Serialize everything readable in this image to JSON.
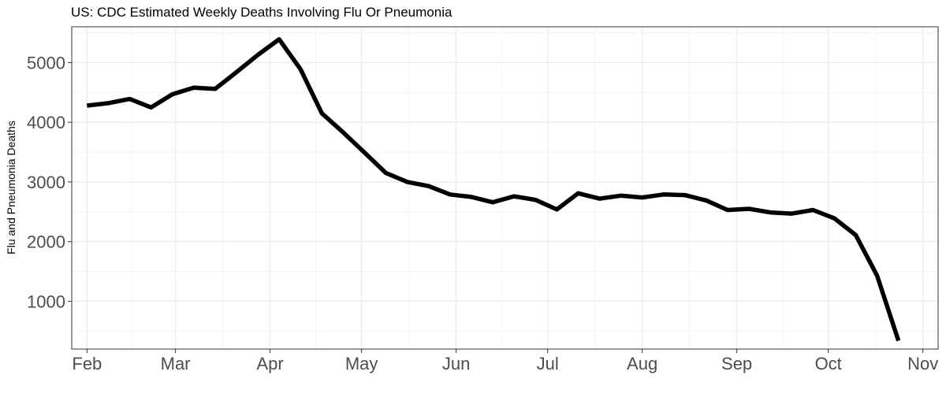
{
  "chart_data": {
    "type": "line",
    "title": "US: CDC Estimated Weekly Deaths Involving Flu Or Pneumonia",
    "xlabel": "",
    "ylabel": "Flu and Pneumonia Deaths",
    "x_ticks": [
      "Feb",
      "Mar",
      "Apr",
      "May",
      "Jun",
      "Jul",
      "Aug",
      "Sep",
      "Oct",
      "Nov"
    ],
    "y_ticks": [
      1000,
      2000,
      3000,
      4000,
      5000
    ],
    "xlim": [
      "2020-01-27",
      "2020-11-06"
    ],
    "ylim": [
      200,
      5600
    ],
    "grid": true,
    "line_color": "#000000",
    "series": [
      {
        "x": [
          "2020-02-01",
          "2020-02-08",
          "2020-02-15",
          "2020-02-22",
          "2020-02-29",
          "2020-03-07",
          "2020-03-14",
          "2020-03-21",
          "2020-03-28",
          "2020-04-04",
          "2020-04-11",
          "2020-04-18",
          "2020-04-25",
          "2020-05-02",
          "2020-05-09",
          "2020-05-16",
          "2020-05-23",
          "2020-05-30",
          "2020-06-06",
          "2020-06-13",
          "2020-06-20",
          "2020-06-27",
          "2020-07-04",
          "2020-07-11",
          "2020-07-18",
          "2020-07-25",
          "2020-08-01",
          "2020-08-08",
          "2020-08-15",
          "2020-08-22",
          "2020-08-29",
          "2020-09-05",
          "2020-09-12",
          "2020-09-19",
          "2020-09-26",
          "2020-10-03",
          "2020-10-10",
          "2020-10-17",
          "2020-10-24"
        ],
        "y": [
          4280,
          4320,
          4390,
          4250,
          4470,
          4580,
          4560,
          4840,
          5130,
          5390,
          4890,
          4150,
          3830,
          3490,
          3150,
          3000,
          2930,
          2790,
          2750,
          2660,
          2760,
          2700,
          2540,
          2810,
          2720,
          2770,
          2740,
          2790,
          2780,
          2690,
          2530,
          2550,
          2490,
          2470,
          2530,
          2390,
          2110,
          1430,
          340
        ]
      }
    ]
  }
}
